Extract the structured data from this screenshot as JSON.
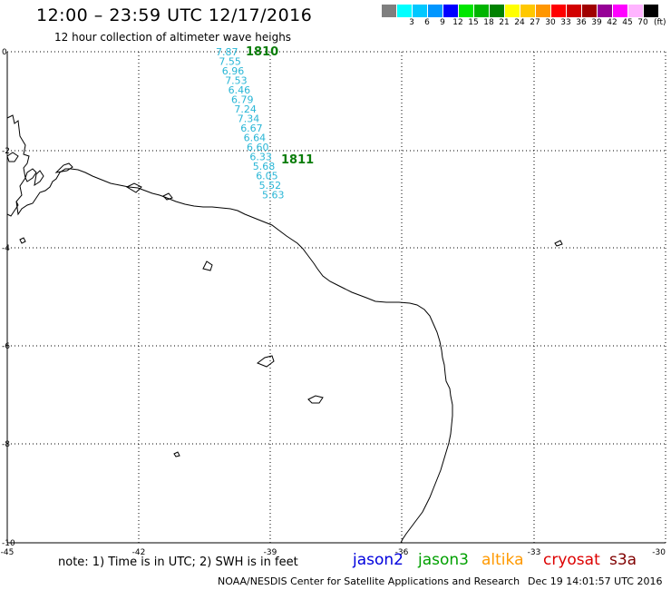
{
  "header": {
    "title": "12:00 – 23:59 UTC 12/17/2016",
    "subtitle": "12 hour collection of altimeter wave heighs"
  },
  "scale": {
    "swatches": [
      {
        "label": "",
        "color": "#7f7f7f"
      },
      {
        "label": "3",
        "color": "#00ffff"
      },
      {
        "label": "6",
        "color": "#00c8ff"
      },
      {
        "label": "9",
        "color": "#0096ff"
      },
      {
        "label": "12",
        "color": "#0000ff"
      },
      {
        "label": "15",
        "color": "#00e600"
      },
      {
        "label": "18",
        "color": "#00b400"
      },
      {
        "label": "21",
        "color": "#008200"
      },
      {
        "label": "24",
        "color": "#ffff00"
      },
      {
        "label": "27",
        "color": "#ffc800"
      },
      {
        "label": "30",
        "color": "#ff9600"
      },
      {
        "label": "33",
        "color": "#ff0000"
      },
      {
        "label": "36",
        "color": "#d20000"
      },
      {
        "label": "39",
        "color": "#a00000"
      },
      {
        "label": "42",
        "color": "#960096"
      },
      {
        "label": "45",
        "color": "#ff00ff"
      },
      {
        "label": "70",
        "color": "#ffb4ff"
      }
    ],
    "last_swatch_color": "#000000",
    "unit": "(ft)"
  },
  "axes": {
    "x_ticks": [
      "-45",
      "-42",
      "-39",
      "-36",
      "-33",
      "-30"
    ],
    "y_ticks": [
      "0",
      "-2",
      "-4",
      "-6",
      "-8",
      "-10"
    ]
  },
  "track": {
    "pass_labels": [
      "1810",
      "1811"
    ],
    "values": [
      "7.87",
      "7.55",
      "6.96",
      "7.53",
      "6.46",
      "6.79",
      "7.24",
      "7.34",
      "6.67",
      "6.64",
      "6.60",
      "6.33",
      "5.68",
      "6.05",
      "5.52",
      "5.63"
    ],
    "color": "#29b6d6",
    "pass_color": "#0a7d0a"
  },
  "footer": {
    "note": "note: 1) Time is in UTC; 2) SWH is in feet",
    "satellites": [
      {
        "name": "jason2",
        "color": "#0000dd"
      },
      {
        "name": "jason3",
        "color": "#00a000"
      },
      {
        "name": "altika",
        "color": "#ff9900"
      },
      {
        "name": "cryosat",
        "color": "#dd0000"
      },
      {
        "name": "s3a",
        "color": "#800000"
      }
    ],
    "credit": "NOAA/NESDIS Center for Satellite Applications and Research",
    "timestamp": "Dec 19 14:01:57 UTC 2016"
  }
}
